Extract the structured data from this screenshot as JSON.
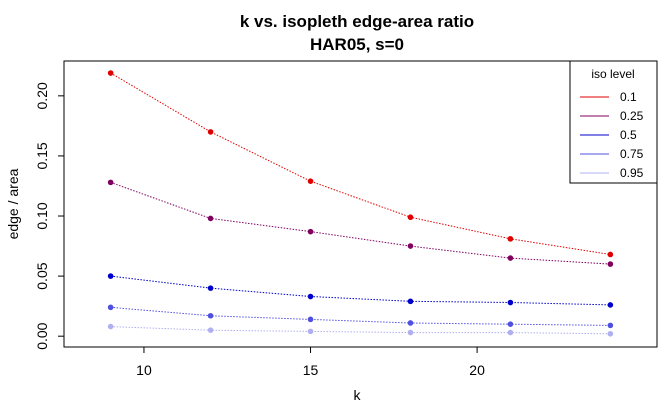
{
  "chart_data": {
    "type": "line",
    "title": "k vs. isopleth edge-area ratio",
    "subtitle": "HAR05, s=0",
    "xlabel": "k",
    "ylabel": "edge / area",
    "xlim": [
      7.6,
      25.4
    ],
    "ylim": [
      -0.009,
      0.229
    ],
    "x_ticks": [
      10,
      15,
      20
    ],
    "y_ticks": [
      0.0,
      0.05,
      0.1,
      0.15,
      0.2
    ],
    "y_tick_labels": [
      "0.00",
      "0.05",
      "0.10",
      "0.15",
      "0.20"
    ],
    "x": [
      9,
      12,
      15,
      18,
      21,
      24
    ],
    "legend": {
      "title": "iso level",
      "position": "top-right"
    },
    "series": [
      {
        "name": "0.1",
        "color": "#e00000",
        "values": [
          0.219,
          0.17,
          0.129,
          0.099,
          0.081,
          0.068
        ]
      },
      {
        "name": "0.25",
        "color": "#800060",
        "values": [
          0.128,
          0.098,
          0.087,
          0.075,
          0.065,
          0.06
        ]
      },
      {
        "name": "0.5",
        "color": "#0000cc",
        "values": [
          0.05,
          0.04,
          0.033,
          0.029,
          0.028,
          0.026
        ]
      },
      {
        "name": "0.75",
        "color": "#5050e0",
        "values": [
          0.024,
          0.017,
          0.014,
          0.011,
          0.01,
          0.009
        ]
      },
      {
        "name": "0.95",
        "color": "#b0b0f0",
        "values": [
          0.008,
          0.005,
          0.004,
          0.003,
          0.003,
          0.002
        ]
      }
    ]
  }
}
